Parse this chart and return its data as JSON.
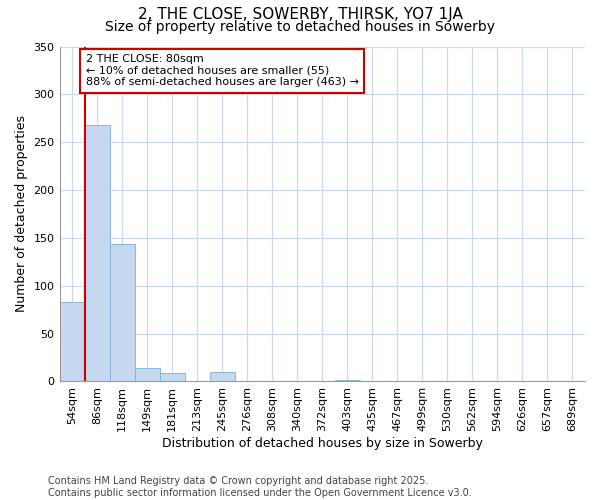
{
  "title": "2, THE CLOSE, SOWERBY, THIRSK, YO7 1JA",
  "subtitle": "Size of property relative to detached houses in Sowerby",
  "xlabel": "Distribution of detached houses by size in Sowerby",
  "ylabel": "Number of detached properties",
  "categories": [
    "54sqm",
    "86sqm",
    "118sqm",
    "149sqm",
    "181sqm",
    "213sqm",
    "245sqm",
    "276sqm",
    "308sqm",
    "340sqm",
    "372sqm",
    "403sqm",
    "435sqm",
    "467sqm",
    "499sqm",
    "530sqm",
    "562sqm",
    "594sqm",
    "626sqm",
    "657sqm",
    "689sqm"
  ],
  "values": [
    83,
    268,
    144,
    14,
    9,
    0,
    10,
    0,
    0,
    0,
    0,
    2,
    0,
    0,
    0,
    0,
    0,
    0,
    0,
    0,
    1
  ],
  "bar_color": "#c5d8f0",
  "bar_edge_color": "#7aafd4",
  "background_color": "#ffffff",
  "plot_bg_color": "#ffffff",
  "grid_color": "#c8d8f0",
  "vline_color": "#cc0000",
  "vline_x_index": 0.5,
  "annotation_text": "2 THE CLOSE: 80sqm\n← 10% of detached houses are smaller (55)\n88% of semi-detached houses are larger (463) →",
  "annotation_box_facecolor": "#ffffff",
  "annotation_box_edgecolor": "#cc0000",
  "ylim": [
    0,
    350
  ],
  "yticks": [
    0,
    50,
    100,
    150,
    200,
    250,
    300,
    350
  ],
  "footer": "Contains HM Land Registry data © Crown copyright and database right 2025.\nContains public sector information licensed under the Open Government Licence v3.0.",
  "title_fontsize": 11,
  "subtitle_fontsize": 10,
  "label_fontsize": 9,
  "tick_fontsize": 8,
  "footer_fontsize": 7,
  "annot_fontsize": 8
}
